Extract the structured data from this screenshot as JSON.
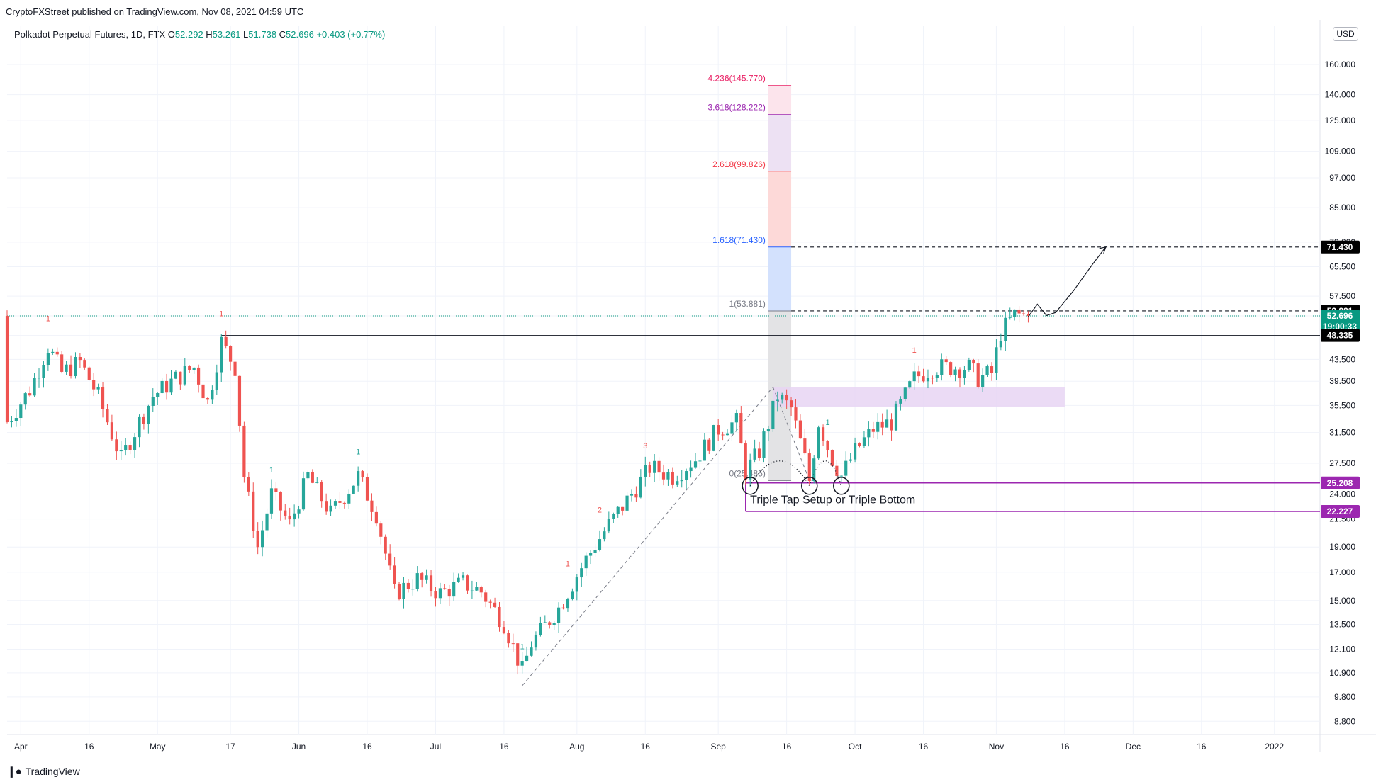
{
  "header": {
    "published": "CryptoFXStreet published on TradingView.com, Nov 08, 2021 04:59 UTC",
    "symbol": "Polkadot Perpetual Futures, 1D, FTX",
    "ohlc": [
      {
        "k": "O",
        "v": "52.292"
      },
      {
        "k": "H",
        "v": "53.261"
      },
      {
        "k": "L",
        "v": "51.738"
      },
      {
        "k": "C",
        "v": "52.696"
      }
    ],
    "change": "+0.403 (+0.77%)",
    "currency": "USD"
  },
  "footer": {
    "brand": "TradingView"
  },
  "colors": {
    "up": "#26a69a",
    "down": "#ef5350",
    "axis_text": "#131722",
    "fib_4236": "#e91e63",
    "fib_3618": "#9c27b0",
    "fib_2618": "#f23645",
    "fib_1618": "#2962ff",
    "level_line": "#9c27b0",
    "last_price": "#089981"
  },
  "chart_data": {
    "type": "candlestick",
    "title": "Polkadot Perpetual Futures, 1D, FTX",
    "y_scale": "log",
    "ylim": [
      8.3,
      190
    ],
    "y_ticks": [
      "8.800",
      "9.800",
      "10.900",
      "12.100",
      "13.500",
      "15.000",
      "17.000",
      "19.000",
      "21.500",
      "24.000",
      "27.500",
      "31.500",
      "35.500",
      "39.500",
      "43.500",
      "48.335",
      "52.696",
      "57.500",
      "65.500",
      "73.000",
      "85.000",
      "97.000",
      "109.000",
      "125.000",
      "140.000",
      "160.000"
    ],
    "y_tick_values": [
      8.8,
      9.8,
      10.9,
      12.1,
      13.5,
      15.0,
      17.0,
      19.0,
      21.5,
      24.0,
      27.5,
      31.5,
      35.5,
      39.5,
      43.5,
      48.335,
      52.696,
      57.5,
      65.5,
      73.0,
      85.0,
      97.0,
      109.0,
      125.0,
      140.0,
      160.0
    ],
    "x_ticks": [
      {
        "label": "Apr",
        "date": "2021-04-01"
      },
      {
        "label": "16",
        "date": "2021-04-16"
      },
      {
        "label": "May",
        "date": "2021-05-01"
      },
      {
        "label": "17",
        "date": "2021-05-17"
      },
      {
        "label": "Jun",
        "date": "2021-06-01"
      },
      {
        "label": "16",
        "date": "2021-06-16"
      },
      {
        "label": "Jul",
        "date": "2021-07-01"
      },
      {
        "label": "16",
        "date": "2021-07-16"
      },
      {
        "label": "Aug",
        "date": "2021-08-01"
      },
      {
        "label": "16",
        "date": "2021-08-16"
      },
      {
        "label": "Sep",
        "date": "2021-09-01"
      },
      {
        "label": "16",
        "date": "2021-09-16"
      },
      {
        "label": "Oct",
        "date": "2021-10-01"
      },
      {
        "label": "16",
        "date": "2021-10-16"
      },
      {
        "label": "Nov",
        "date": "2021-11-01"
      },
      {
        "label": "16",
        "date": "2021-11-16"
      },
      {
        "label": "Dec",
        "date": "2021-12-01"
      },
      {
        "label": "16",
        "date": "2021-12-16"
      },
      {
        "label": "2022",
        "date": "2022-01-01"
      }
    ],
    "price_path": [
      {
        "date": "2021-03-29",
        "close": 33
      },
      {
        "date": "2021-04-03",
        "close": 38
      },
      {
        "date": "2021-04-07",
        "close": 46
      },
      {
        "date": "2021-04-10",
        "close": 41
      },
      {
        "date": "2021-04-14",
        "close": 43
      },
      {
        "date": "2021-04-18",
        "close": 37
      },
      {
        "date": "2021-04-23",
        "close": 28
      },
      {
        "date": "2021-04-27",
        "close": 33
      },
      {
        "date": "2021-04-30",
        "close": 37
      },
      {
        "date": "2021-05-05",
        "close": 40
      },
      {
        "date": "2021-05-09",
        "close": 42
      },
      {
        "date": "2021-05-12",
        "close": 36
      },
      {
        "date": "2021-05-15",
        "close": 47
      },
      {
        "date": "2021-05-18",
        "close": 42
      },
      {
        "date": "2021-05-20",
        "close": 26
      },
      {
        "date": "2021-05-23",
        "close": 19
      },
      {
        "date": "2021-05-26",
        "close": 24
      },
      {
        "date": "2021-05-30",
        "close": 21
      },
      {
        "date": "2021-06-03",
        "close": 26
      },
      {
        "date": "2021-06-08",
        "close": 22
      },
      {
        "date": "2021-06-14",
        "close": 26
      },
      {
        "date": "2021-06-18",
        "close": 22
      },
      {
        "date": "2021-06-22",
        "close": 15.5
      },
      {
        "date": "2021-06-27",
        "close": 16.5
      },
      {
        "date": "2021-07-02",
        "close": 15.5
      },
      {
        "date": "2021-07-07",
        "close": 16.2
      },
      {
        "date": "2021-07-11",
        "close": 15.6
      },
      {
        "date": "2021-07-16",
        "close": 13.6
      },
      {
        "date": "2021-07-20",
        "close": 11
      },
      {
        "date": "2021-07-22",
        "close": 12.4
      },
      {
        "date": "2021-07-28",
        "close": 14.5
      },
      {
        "date": "2021-08-03",
        "close": 18
      },
      {
        "date": "2021-08-08",
        "close": 21
      },
      {
        "date": "2021-08-13",
        "close": 24
      },
      {
        "date": "2021-08-17",
        "close": 27
      },
      {
        "date": "2021-08-22",
        "close": 26
      },
      {
        "date": "2021-08-27",
        "close": 28
      },
      {
        "date": "2021-09-01",
        "close": 32
      },
      {
        "date": "2021-09-05",
        "close": 33
      },
      {
        "date": "2021-09-07",
        "close": 26.5
      },
      {
        "date": "2021-09-10",
        "close": 29
      },
      {
        "date": "2021-09-14",
        "close": 37
      },
      {
        "date": "2021-09-17",
        "close": 35
      },
      {
        "date": "2021-09-20",
        "close": 28
      },
      {
        "date": "2021-09-21",
        "close": 25.5
      },
      {
        "date": "2021-09-23",
        "close": 33
      },
      {
        "date": "2021-09-26",
        "close": 28
      },
      {
        "date": "2021-09-28",
        "close": 26
      },
      {
        "date": "2021-10-01",
        "close": 29
      },
      {
        "date": "2021-10-05",
        "close": 32
      },
      {
        "date": "2021-10-09",
        "close": 33
      },
      {
        "date": "2021-10-12",
        "close": 37
      },
      {
        "date": "2021-10-14",
        "close": 40
      },
      {
        "date": "2021-10-18",
        "close": 42
      },
      {
        "date": "2021-10-22",
        "close": 42
      },
      {
        "date": "2021-10-26",
        "close": 42
      },
      {
        "date": "2021-10-28",
        "close": 40
      },
      {
        "date": "2021-10-31",
        "close": 41
      },
      {
        "date": "2021-11-02",
        "close": 49
      },
      {
        "date": "2021-11-05",
        "close": 53
      },
      {
        "date": "2021-11-08",
        "close": 52.696
      }
    ],
    "annotations": {
      "fib_levels": [
        {
          "label": "4.236(145.770)",
          "value": 145.77,
          "color": "#e91e63"
        },
        {
          "label": "3.618(128.222)",
          "value": 128.222,
          "color": "#9c27b0"
        },
        {
          "label": "2.618(99.826)",
          "value": 99.826,
          "color": "#f23645"
        },
        {
          "label": "1.618(71.430)",
          "value": 71.43,
          "color": "#2962ff"
        },
        {
          "label": "1(53.881)",
          "value": 53.881,
          "color": "#787b86"
        },
        {
          "label": "0(25.485)",
          "value": 25.485,
          "color": "#787b86"
        }
      ],
      "price_badges": [
        {
          "label": "71.430",
          "value": 71.43,
          "bg": "#000000"
        },
        {
          "label": "53.881",
          "value": 53.881,
          "bg": "#000000"
        },
        {
          "label": "52.696",
          "value": 52.696,
          "bg": "#089981"
        },
        {
          "label": "19:00:33",
          "value": 50.3,
          "bg": "#089981"
        },
        {
          "label": "48.335",
          "value": 48.335,
          "bg": "#000000"
        },
        {
          "label": "25.208",
          "value": 25.208,
          "bg": "#9c27b0"
        },
        {
          "label": "22.227",
          "value": 22.227,
          "bg": "#9c27b0"
        }
      ],
      "setup_text": "Triple Tap Setup or Triple Bottom",
      "td_counts": [
        {
          "label": "1",
          "date": "2021-04-07",
          "color": "#ef5350"
        },
        {
          "label": "1",
          "date": "2021-05-15",
          "color": "#ef5350"
        },
        {
          "label": "1",
          "date": "2021-05-26",
          "color": "#26a69a"
        },
        {
          "label": "1",
          "date": "2021-06-14",
          "color": "#26a69a"
        },
        {
          "label": "1",
          "date": "2021-07-20",
          "color": "#26a69a"
        },
        {
          "label": "1",
          "date": "2021-07-30",
          "color": "#ef5350"
        },
        {
          "label": "2",
          "date": "2021-08-06",
          "color": "#ef5350"
        },
        {
          "label": "3",
          "date": "2021-08-16",
          "color": "#ef5350"
        },
        {
          "label": "1",
          "date": "2021-09-06",
          "color": "#ef5350"
        },
        {
          "label": "1",
          "date": "2021-09-25",
          "color": "#26a69a"
        },
        {
          "label": "1",
          "date": "2021-10-14",
          "color": "#ef5350"
        }
      ]
    }
  }
}
